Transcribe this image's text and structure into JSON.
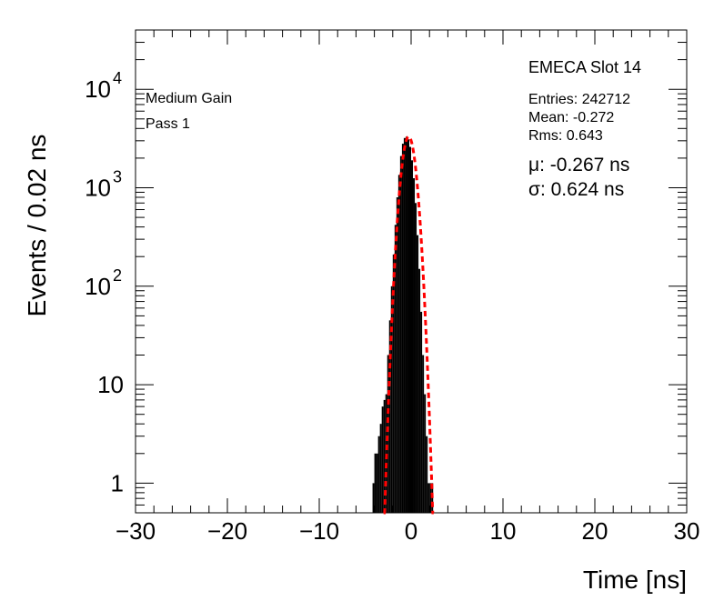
{
  "chart_data": {
    "type": "histogram",
    "xlabel": "Time [ns]",
    "ylabel": "Events / 0.02 ns",
    "xlim": [
      -30,
      30
    ],
    "ylim": [
      0.5,
      40000
    ],
    "yscale": "log",
    "x_ticks": [
      {
        "value": -30,
        "label": "−30"
      },
      {
        "value": -20,
        "label": "−20"
      },
      {
        "value": -10,
        "label": "−10"
      },
      {
        "value": 0,
        "label": "0"
      },
      {
        "value": 10,
        "label": "10"
      },
      {
        "value": 20,
        "label": "20"
      },
      {
        "value": 30,
        "label": "30"
      }
    ],
    "y_ticks": [
      {
        "value": 1,
        "base": "1",
        "exp": ""
      },
      {
        "value": 10,
        "base": "10",
        "exp": ""
      },
      {
        "value": 100,
        "base": "10",
        "exp": "2"
      },
      {
        "value": 1000,
        "base": "10",
        "exp": "3"
      },
      {
        "value": 10000,
        "base": "10",
        "exp": "4"
      }
    ],
    "grid": false,
    "series": [
      {
        "kind": "histogram",
        "color": "#000000",
        "x": [
          -4.1,
          -3.9,
          -3.7,
          -3.5,
          -3.3,
          -3.1,
          -2.9,
          -2.7,
          -2.5,
          -2.3,
          -2.1,
          -1.9,
          -1.7,
          -1.5,
          -1.3,
          -1.1,
          -0.9,
          -0.7,
          -0.5,
          -0.3,
          -0.1,
          0.1,
          0.3,
          0.5,
          0.7,
          0.9,
          1.1,
          1.3,
          1.5,
          1.7,
          1.9,
          2.1,
          2.3
        ],
        "values": [
          1,
          2,
          2,
          3,
          4,
          6,
          7,
          8,
          20,
          45,
          100,
          210,
          420,
          800,
          1350,
          2100,
          2800,
          3200,
          3300,
          3100,
          2600,
          1900,
          1250,
          700,
          330,
          150,
          55,
          20,
          8,
          3,
          1,
          1,
          1
        ]
      },
      {
        "kind": "fit",
        "style": "dashed",
        "color": "#ff0000",
        "function": "gaussian",
        "mu": -0.267,
        "sigma": 0.624,
        "peak": 3300
      }
    ]
  },
  "stats": {
    "title": "EMECA Slot 14",
    "entries": "Entries: 242712",
    "mean": "Mean: -0.272",
    "rms": "Rms: 0.643",
    "mu": "μ: -0.267 ns",
    "sigma": "σ: 0.624 ns"
  },
  "labels": {
    "gain": "Medium Gain",
    "pass": "Pass 1"
  }
}
